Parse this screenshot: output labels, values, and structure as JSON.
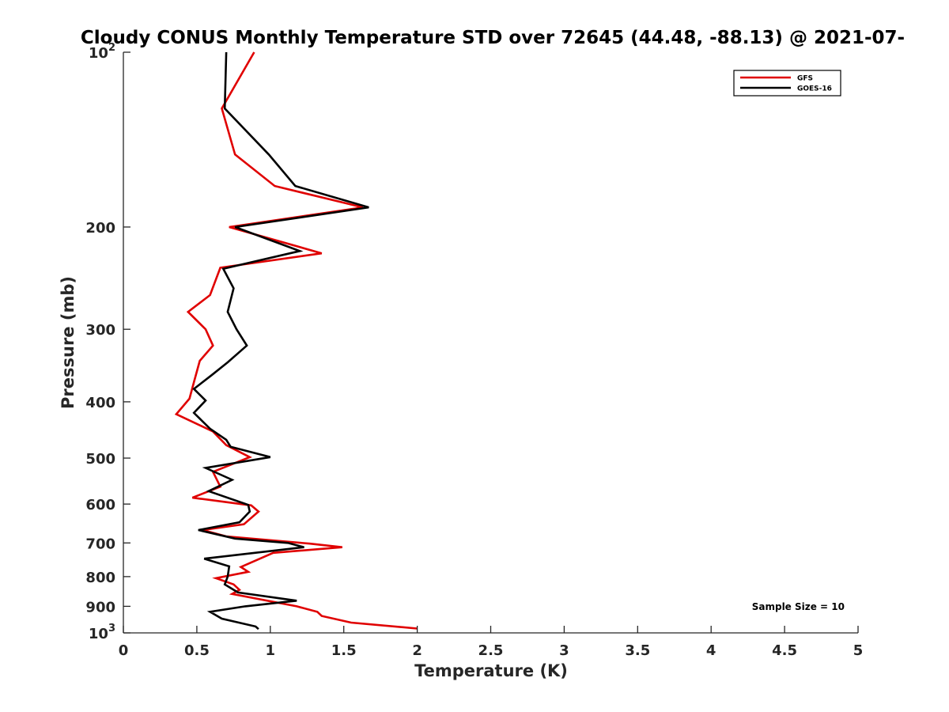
{
  "chart_data": {
    "type": "line",
    "title": "Cloudy CONUS Monthly Temperature STD over 72645 (44.48, -88.13) @ 2021-07-",
    "xlabel": "Temperature (K)",
    "ylabel": "Pressure (mb)",
    "xlim": [
      0,
      5
    ],
    "ylim": [
      100,
      1000
    ],
    "y_scale": "log",
    "y_reversed": true,
    "grid": false,
    "legend_position": "top-right",
    "x_ticks": [
      "0",
      "0.5",
      "1",
      "1.5",
      "2",
      "2.5",
      "3",
      "3.5",
      "4",
      "4.5",
      "5"
    ],
    "y_ticks": [
      {
        "value": 100,
        "label": "10",
        "exp": "2"
      },
      {
        "value": 200,
        "label": "200",
        "exp": ""
      },
      {
        "value": 300,
        "label": "300",
        "exp": ""
      },
      {
        "value": 400,
        "label": "400",
        "exp": ""
      },
      {
        "value": 500,
        "label": "500",
        "exp": ""
      },
      {
        "value": 600,
        "label": "600",
        "exp": ""
      },
      {
        "value": 700,
        "label": "700",
        "exp": ""
      },
      {
        "value": 800,
        "label": "800",
        "exp": ""
      },
      {
        "value": 900,
        "label": "900",
        "exp": ""
      },
      {
        "value": 1000,
        "label": "10",
        "exp": "3"
      }
    ],
    "series": [
      {
        "name": "GFS",
        "color": "#e00000",
        "points": [
          [
            0.89,
            100
          ],
          [
            0.67,
            125
          ],
          [
            0.76,
            150
          ],
          [
            1.03,
            170
          ],
          [
            1.63,
            185
          ],
          [
            0.72,
            200
          ],
          [
            1.35,
            222
          ],
          [
            0.66,
            235
          ],
          [
            0.59,
            262
          ],
          [
            0.44,
            280
          ],
          [
            0.56,
            300
          ],
          [
            0.61,
            320
          ],
          [
            0.52,
            340
          ],
          [
            0.48,
            370
          ],
          [
            0.45,
            395
          ],
          [
            0.36,
            420
          ],
          [
            0.61,
            450
          ],
          [
            0.7,
            475
          ],
          [
            0.86,
            498
          ],
          [
            0.61,
            528
          ],
          [
            0.66,
            560
          ],
          [
            0.47,
            585
          ],
          [
            0.87,
            603
          ],
          [
            0.92,
            618
          ],
          [
            0.82,
            650
          ],
          [
            0.54,
            665
          ],
          [
            0.7,
            682
          ],
          [
            1.27,
            702
          ],
          [
            1.49,
            712
          ],
          [
            1.02,
            728
          ],
          [
            0.8,
            770
          ],
          [
            0.85,
            785
          ],
          [
            0.63,
            805
          ],
          [
            0.75,
            825
          ],
          [
            0.79,
            843
          ],
          [
            0.74,
            857
          ],
          [
            1.18,
            900
          ],
          [
            1.32,
            920
          ],
          [
            1.35,
            935
          ],
          [
            1.55,
            960
          ],
          [
            2.0,
            983
          ]
        ]
      },
      {
        "name": "GOES-16",
        "color": "#000000",
        "points": [
          [
            0.7,
            100
          ],
          [
            0.69,
            125
          ],
          [
            0.99,
            150
          ],
          [
            1.17,
            170
          ],
          [
            1.67,
            185
          ],
          [
            0.76,
            200
          ],
          [
            1.2,
            220
          ],
          [
            0.68,
            236
          ],
          [
            0.75,
            255
          ],
          [
            0.71,
            280
          ],
          [
            0.77,
            300
          ],
          [
            0.84,
            320
          ],
          [
            0.71,
            342
          ],
          [
            0.6,
            360
          ],
          [
            0.48,
            380
          ],
          [
            0.56,
            398
          ],
          [
            0.48,
            418
          ],
          [
            0.59,
            445
          ],
          [
            0.7,
            465
          ],
          [
            0.73,
            478
          ],
          [
            1.0,
            498
          ],
          [
            0.56,
            520
          ],
          [
            0.74,
            545
          ],
          [
            0.58,
            570
          ],
          [
            0.85,
            602
          ],
          [
            0.86,
            618
          ],
          [
            0.79,
            645
          ],
          [
            0.51,
            665
          ],
          [
            0.76,
            688
          ],
          [
            1.12,
            700
          ],
          [
            1.23,
            712
          ],
          [
            0.55,
            745
          ],
          [
            0.72,
            768
          ],
          [
            0.71,
            800
          ],
          [
            0.69,
            825
          ],
          [
            0.78,
            852
          ],
          [
            1.18,
            880
          ],
          [
            0.83,
            900
          ],
          [
            0.59,
            920
          ],
          [
            0.67,
            945
          ],
          [
            0.9,
            975
          ],
          [
            0.92,
            985
          ]
        ]
      }
    ],
    "annotations": [
      "Sample Size = 10"
    ]
  }
}
